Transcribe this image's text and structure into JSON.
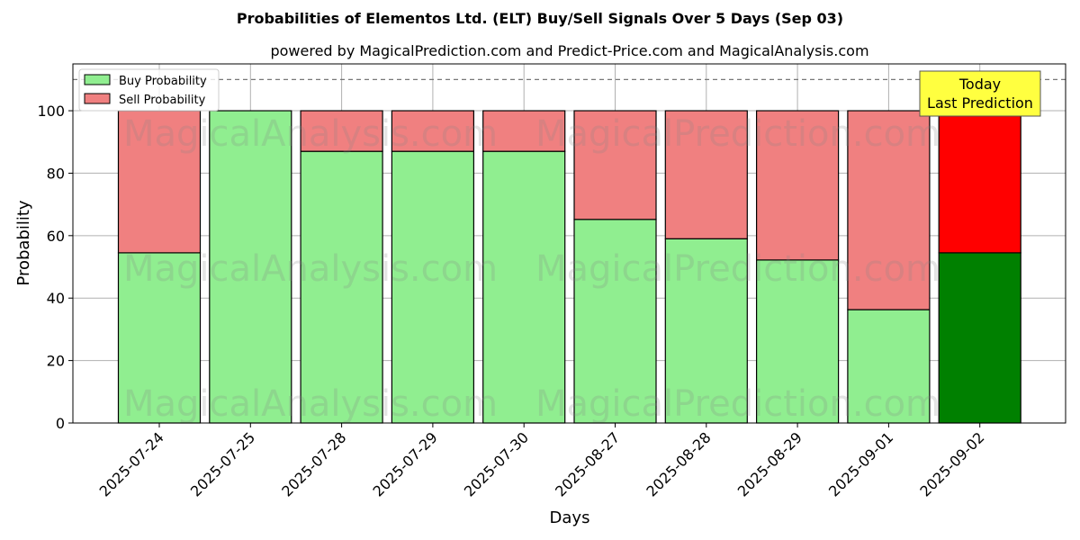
{
  "chart_data": {
    "type": "bar",
    "stacked": true,
    "title": "Probabilities of Elementos Ltd. (ELT) Buy/Sell Signals Over 5 Days (Sep 03)",
    "subtitle": "powered by MagicalPrediction.com and Predict-Price.com and MagicalAnalysis.com",
    "xlabel": "Days",
    "ylabel": "Probability",
    "ylim": [
      0,
      115
    ],
    "yticks": [
      0,
      20,
      40,
      60,
      80,
      100
    ],
    "reference_line": 110,
    "grid": true,
    "legend_position": "top-left",
    "categories": [
      "2025-07-24",
      "2025-07-25",
      "2025-07-28",
      "2025-07-29",
      "2025-07-30",
      "2025-08-27",
      "2025-08-28",
      "2025-08-29",
      "2025-09-01",
      "2025-09-02"
    ],
    "series": [
      {
        "name": "Buy Probability",
        "color": "#90ee90",
        "highlight_color": "#008000",
        "values": [
          54.5,
          100,
          87,
          87,
          87,
          65.2,
          59,
          52.2,
          36.3,
          54.5
        ]
      },
      {
        "name": "Sell Probability",
        "color": "#f08080",
        "highlight_color": "#ff0000",
        "values": [
          45.5,
          0,
          13,
          13,
          13,
          34.8,
          41,
          47.8,
          63.7,
          45.5
        ]
      }
    ],
    "highlight_index": 9,
    "annotation": {
      "line1": "Today",
      "line2": "Last Prediction",
      "background": "#ffff40"
    },
    "watermarks": [
      "MagicalAnalysis.com",
      "MagicalPrediction.com"
    ]
  }
}
